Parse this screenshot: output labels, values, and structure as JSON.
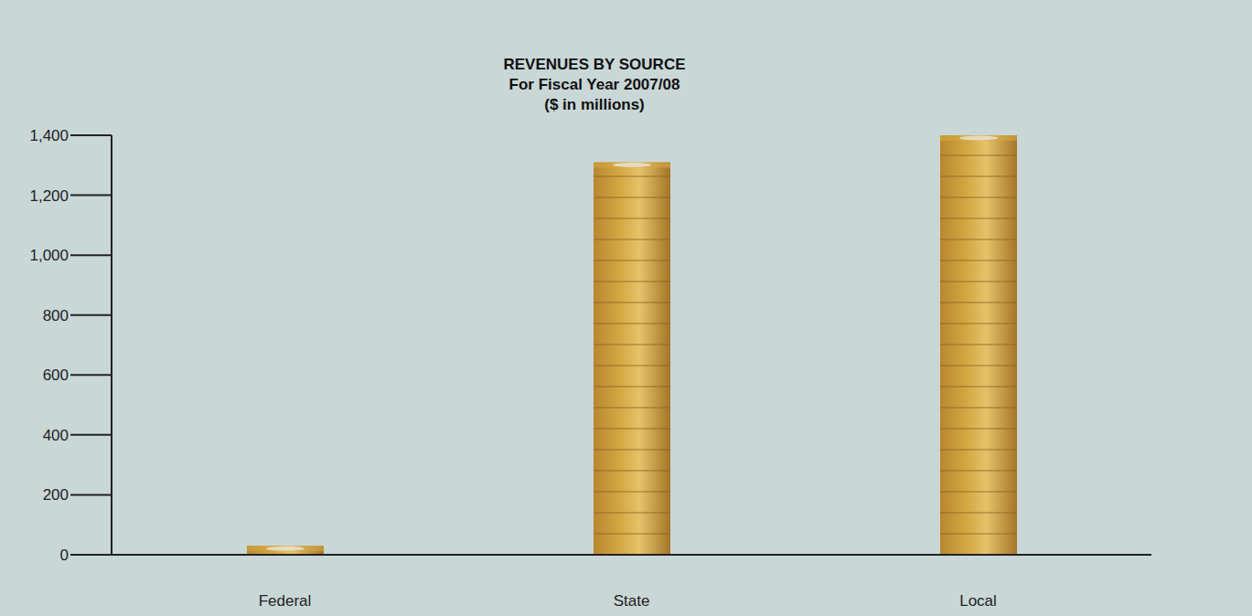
{
  "chart_data": {
    "type": "bar",
    "title": "REVENUES BY SOURCE",
    "subtitle": [
      "For Fiscal Year 2007/08",
      "($ in millions)"
    ],
    "categories": [
      "Federal",
      "State",
      "Local"
    ],
    "values": [
      30,
      1310,
      1400
    ],
    "color": "#d4a843",
    "ylim": [
      0,
      1400
    ],
    "yticks": [
      0,
      200,
      400,
      600,
      800,
      {
        "value": 1000,
        "label": "1,000"
      },
      {
        "value": 1200,
        "label": "1,200"
      },
      {
        "value": 1400,
        "label": "1,400"
      }
    ],
    "grid": false
  }
}
